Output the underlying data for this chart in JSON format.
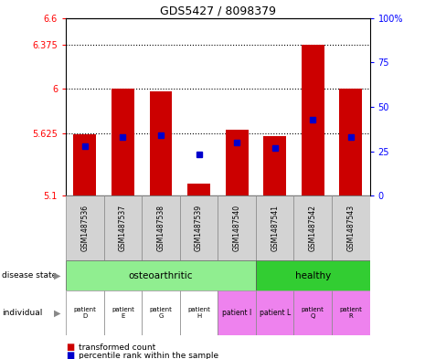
{
  "title": "GDS5427 / 8098379",
  "samples": [
    "GSM1487536",
    "GSM1487537",
    "GSM1487538",
    "GSM1487539",
    "GSM1487540",
    "GSM1487541",
    "GSM1487542",
    "GSM1487543"
  ],
  "red_values": [
    5.62,
    6.0,
    5.98,
    5.2,
    5.66,
    5.6,
    6.37,
    6.0
  ],
  "blue_values": [
    28,
    33,
    34,
    23,
    30,
    27,
    43,
    33
  ],
  "ymin": 5.1,
  "ymax": 6.6,
  "yticks": [
    5.1,
    5.625,
    6.0,
    6.375,
    6.6
  ],
  "ytick_labels": [
    "5.1",
    "5.625",
    "6",
    "6.375",
    "6.6"
  ],
  "right_yticks": [
    0,
    25,
    50,
    75,
    100
  ],
  "right_ytick_labels": [
    "0",
    "25",
    "50",
    "75",
    "100%"
  ],
  "dotted_lines": [
    5.625,
    6.0,
    6.375
  ],
  "disease_osteoarthritic_cols": [
    0,
    1,
    2,
    3,
    4
  ],
  "disease_healthy_cols": [
    5,
    6,
    7
  ],
  "disease_color_osteoarthritic": "#90ee90",
  "disease_color_healthy": "#32cd32",
  "individual_labels": [
    "patient\nD",
    "patient\nE",
    "patient\nG",
    "patient\nH",
    "patient I",
    "patient L",
    "patient\nQ",
    "patient\nR"
  ],
  "individual_colors": [
    "#ffffff",
    "#ffffff",
    "#ffffff",
    "#ffffff",
    "#ee82ee",
    "#ee82ee",
    "#ee82ee",
    "#ee82ee"
  ],
  "bar_color": "#cc0000",
  "dot_color": "#0000cc",
  "sample_bg": "#d3d3d3"
}
